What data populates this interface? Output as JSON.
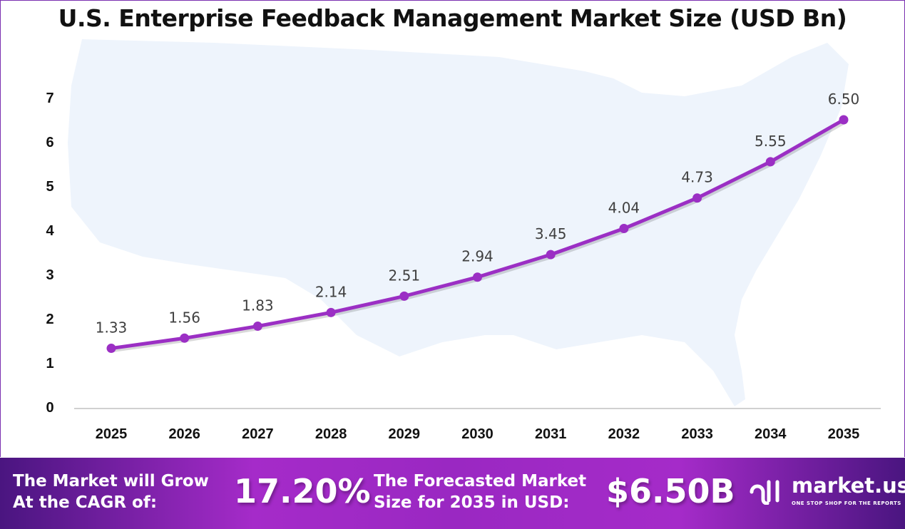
{
  "chart_data": {
    "type": "line",
    "title": "U.S. Enterprise Feedback Management Market Size (USD Bn)",
    "categories": [
      "2025",
      "2026",
      "2027",
      "2028",
      "2029",
      "2030",
      "2031",
      "2032",
      "2033",
      "2034",
      "2035"
    ],
    "values": [
      1.33,
      1.56,
      1.83,
      2.14,
      2.51,
      2.94,
      3.45,
      4.04,
      4.73,
      5.55,
      6.5
    ],
    "data_labels": [
      "1.33",
      "1.56",
      "1.83",
      "2.14",
      "2.51",
      "2.94",
      "3.45",
      "4.04",
      "4.73",
      "5.55",
      "6.50"
    ],
    "ylim": [
      0,
      7
    ],
    "yticks": [
      "0",
      "1",
      "2",
      "3",
      "4",
      "5",
      "6",
      "7"
    ],
    "grid": false,
    "line_color": "#9b2fc4",
    "background_map": "united-states-silhouette"
  },
  "banner": {
    "cagr_label_1": "The Market will Grow",
    "cagr_label_2": "At the CAGR of:",
    "cagr_value": "17.20%",
    "forecast_label_1": "The Forecasted Market",
    "forecast_label_2": "Size for 2035 in USD:",
    "forecast_value": "$6.50B",
    "logo_name": "market.us",
    "logo_tagline": "ONE STOP SHOP FOR THE REPORTS"
  }
}
